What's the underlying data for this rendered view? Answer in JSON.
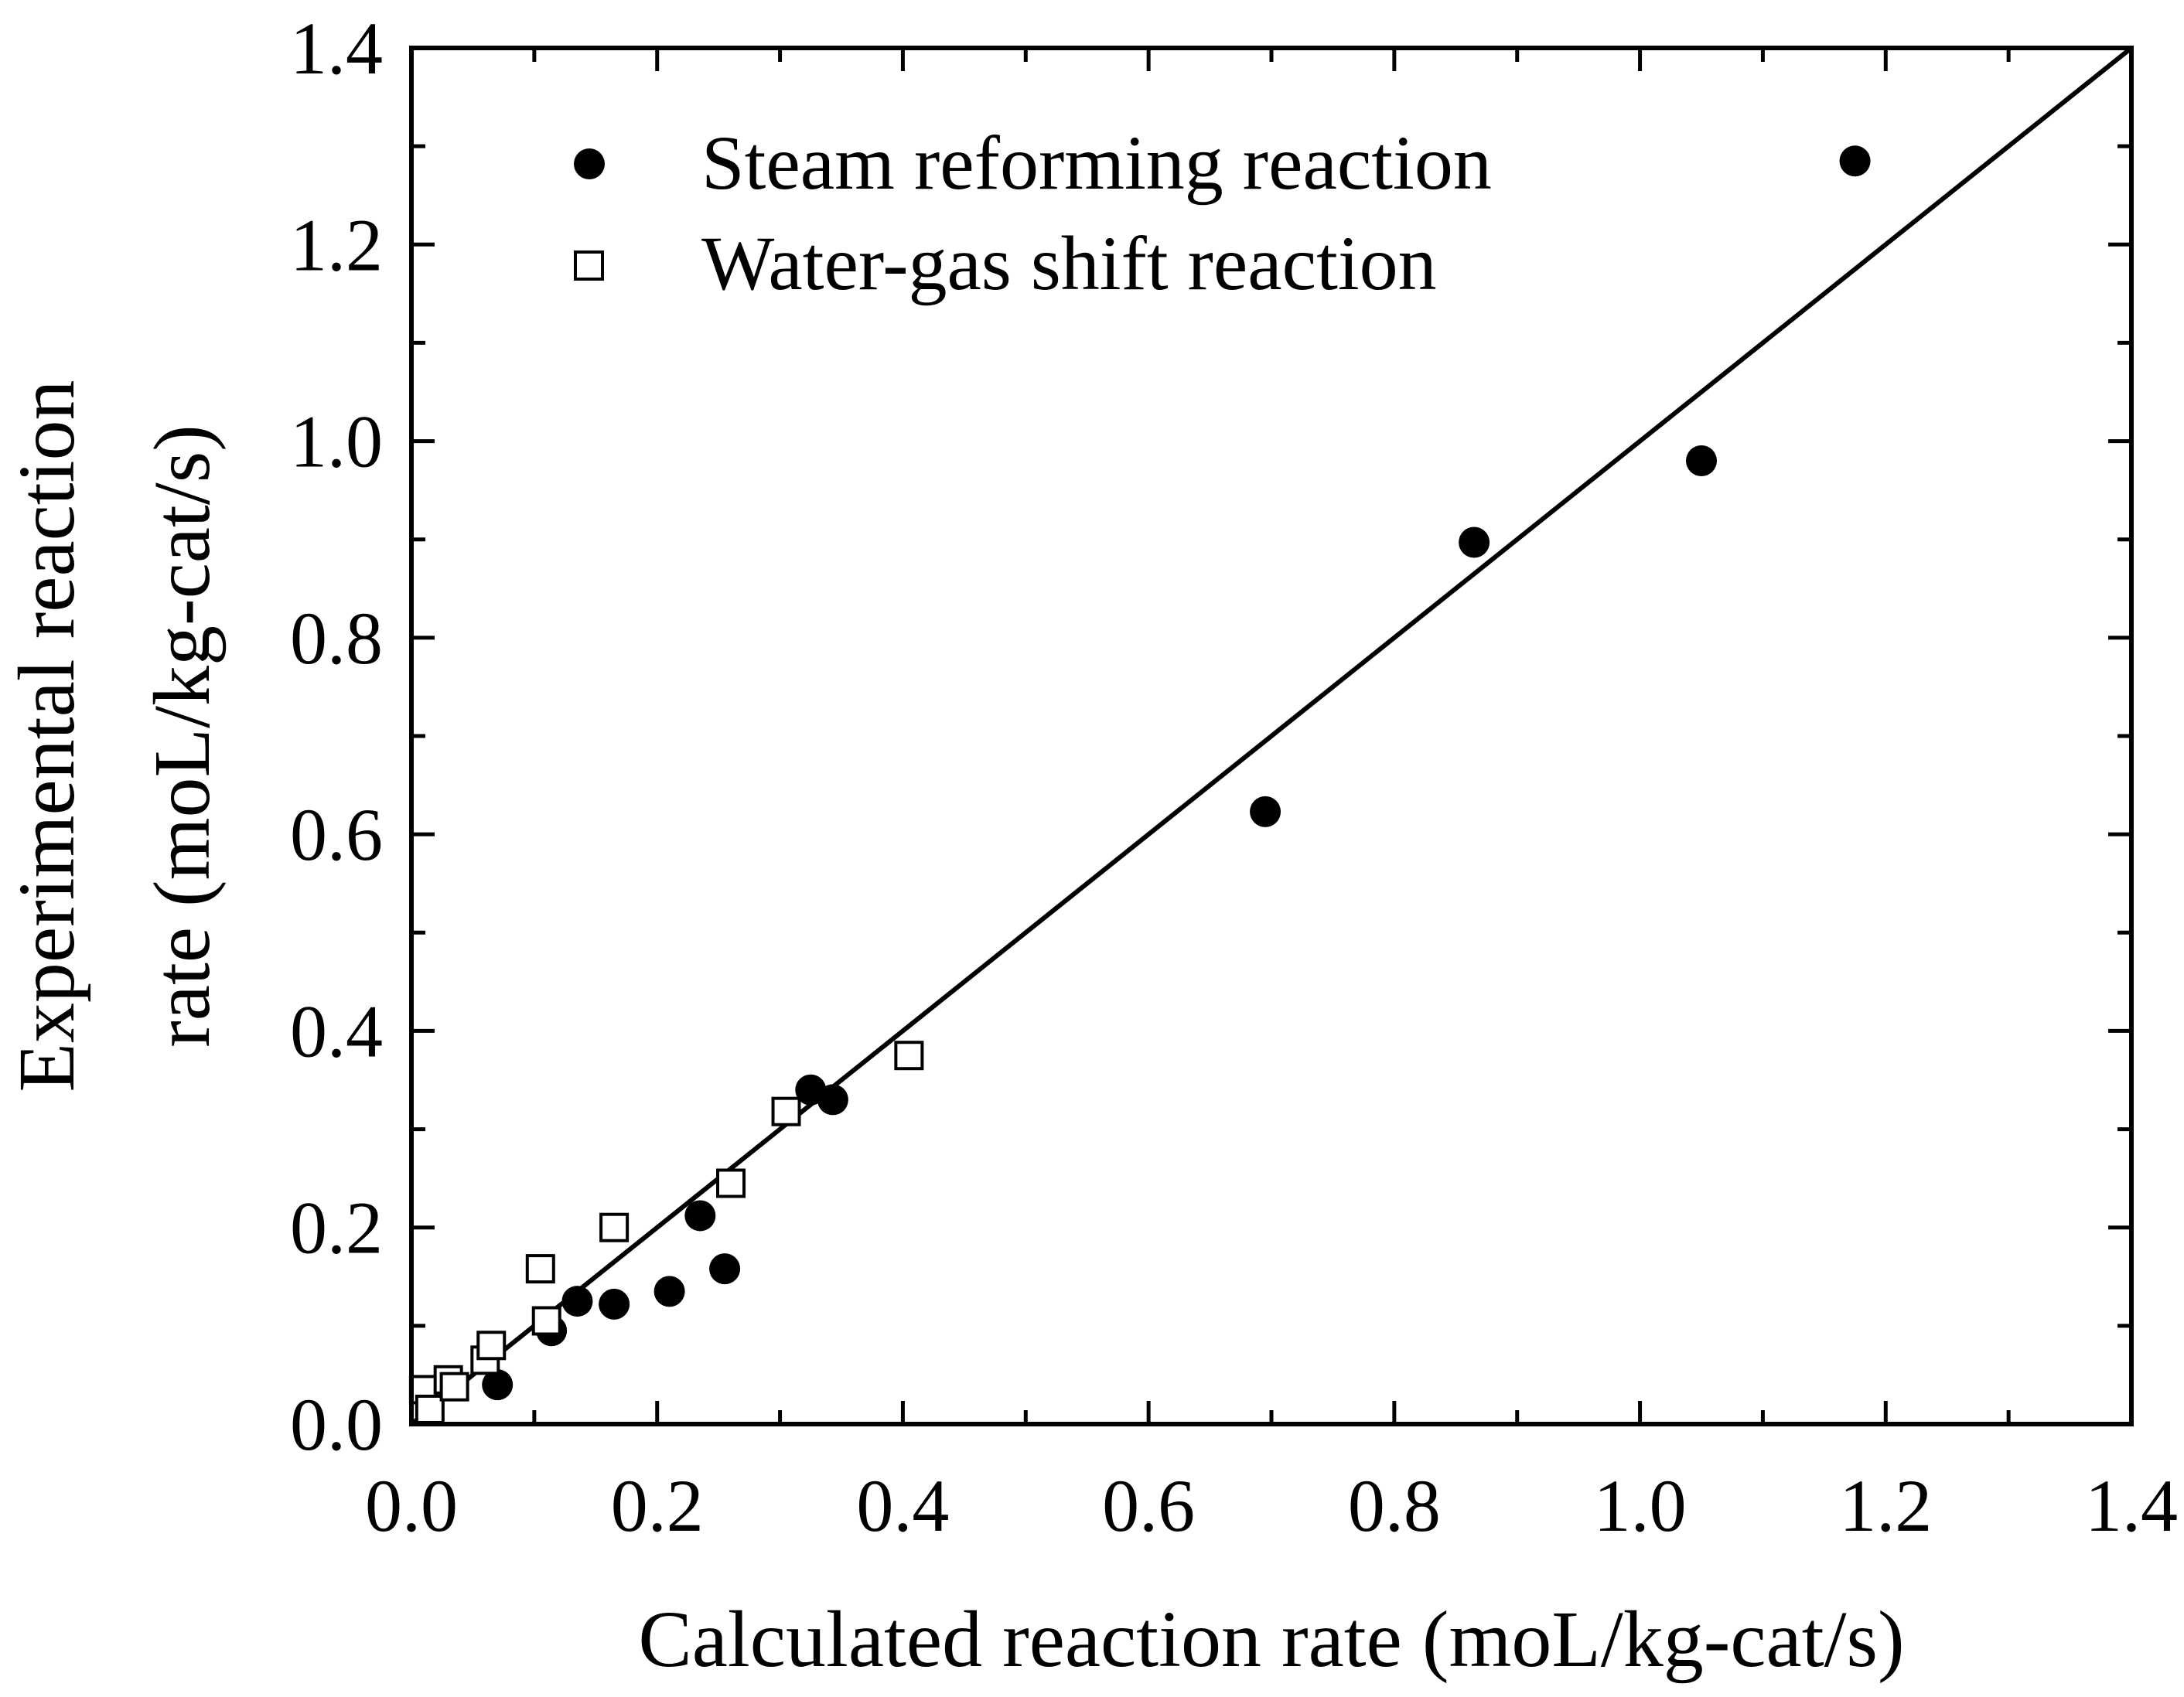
{
  "chart_data": {
    "type": "scatter",
    "title": "",
    "xlabel": "Calculated reaction rate (moL/kg-cat/s)",
    "ylabel_lines": [
      "Experimental reaction",
      "rate (moL/kg-cat/s)"
    ],
    "xlim": [
      0.0,
      1.4
    ],
    "ylim": [
      0.0,
      1.4
    ],
    "x_ticks": [
      "0.0",
      "0.2",
      "0.4",
      "0.6",
      "0.8",
      "1.0",
      "1.2",
      "1.4"
    ],
    "y_ticks": [
      "0.0",
      "0.2",
      "0.4",
      "0.6",
      "0.8",
      "1.0",
      "1.2",
      "1.4"
    ],
    "grid": false,
    "legend_position": "top-left",
    "reference_line": {
      "name": "parity line y = x",
      "from": [
        0.0,
        0.0
      ],
      "to": [
        1.4,
        1.4
      ]
    },
    "series": [
      {
        "name": "Steam reforming reaction",
        "marker": "filled-circle",
        "color": "#000000",
        "points": [
          [
            0.07,
            0.04
          ],
          [
            0.114,
            0.095
          ],
          [
            0.135,
            0.125
          ],
          [
            0.165,
            0.122
          ],
          [
            0.21,
            0.135
          ],
          [
            0.235,
            0.212
          ],
          [
            0.255,
            0.158
          ],
          [
            0.325,
            0.34
          ],
          [
            0.343,
            0.33
          ],
          [
            0.695,
            0.623
          ],
          [
            0.865,
            0.897
          ],
          [
            1.05,
            0.98
          ],
          [
            1.175,
            1.285
          ]
        ]
      },
      {
        "name": "Water-gas shift reaction",
        "marker": "open-square",
        "color": "#000000",
        "points": [
          [
            0.01,
            0.035
          ],
          [
            0.015,
            0.015
          ],
          [
            0.03,
            0.045
          ],
          [
            0.035,
            0.038
          ],
          [
            0.06,
            0.065
          ],
          [
            0.065,
            0.08
          ],
          [
            0.105,
            0.158
          ],
          [
            0.11,
            0.105
          ],
          [
            0.165,
            0.2
          ],
          [
            0.26,
            0.245
          ],
          [
            0.305,
            0.318
          ],
          [
            0.405,
            0.375
          ]
        ]
      }
    ]
  }
}
